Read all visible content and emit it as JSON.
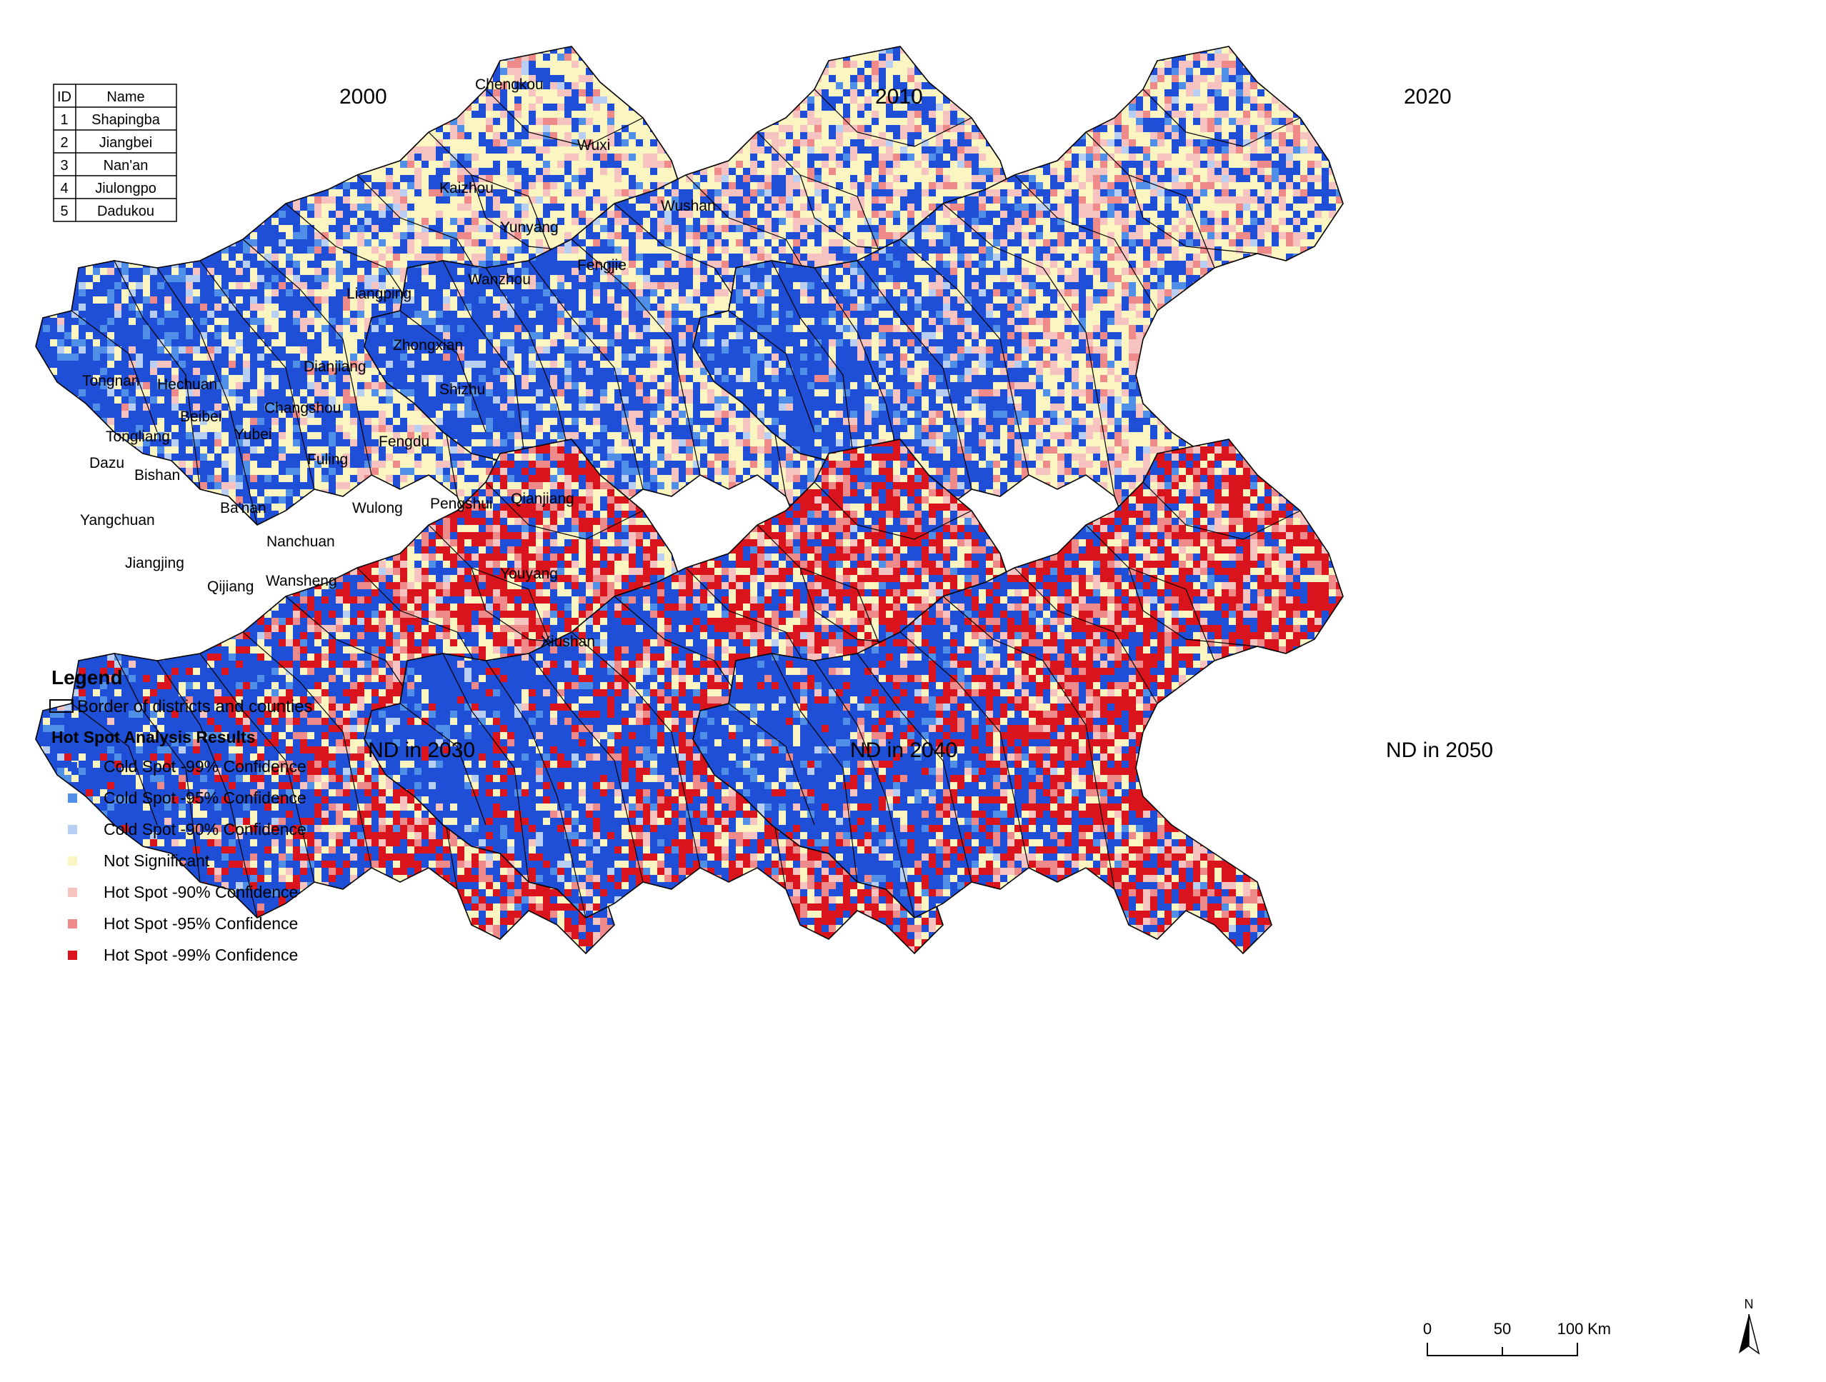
{
  "colors": {
    "cold99": "#1f4fd6",
    "cold95": "#4f8fe8",
    "cold90": "#b8cef3",
    "not_sig": "#fbf5c2",
    "hot90": "#f6c3c0",
    "hot95": "#ee8a8a",
    "hot99": "#d9141c",
    "border": "#000000"
  },
  "panels": [
    {
      "title": "2000",
      "mix": [
        0.52,
        0.1,
        0.06,
        0.25,
        0.05,
        0.02,
        0.0
      ]
    },
    {
      "title": "2010",
      "mix": [
        0.55,
        0.1,
        0.05,
        0.22,
        0.06,
        0.02,
        0.0
      ]
    },
    {
      "title": "2020",
      "mix": [
        0.56,
        0.1,
        0.05,
        0.2,
        0.06,
        0.03,
        0.0
      ]
    },
    {
      "title": "ND in 2030",
      "mix": [
        0.6,
        0.06,
        0.02,
        0.12,
        0.03,
        0.04,
        0.13
      ]
    },
    {
      "title": "ND in 2040",
      "mix": [
        0.6,
        0.06,
        0.02,
        0.11,
        0.03,
        0.04,
        0.14
      ]
    },
    {
      "title": "ND in 2050",
      "mix": [
        0.6,
        0.06,
        0.02,
        0.1,
        0.03,
        0.04,
        0.15
      ]
    }
  ],
  "id_table": {
    "headers": [
      "ID",
      "Name"
    ],
    "rows": [
      [
        "1",
        "Shapingba"
      ],
      [
        "2",
        "Jiangbei"
      ],
      [
        "3",
        "Nan'an"
      ],
      [
        "4",
        "Jiulongpo"
      ],
      [
        "5",
        "Dadukou"
      ]
    ]
  },
  "district_labels": [
    "Chengkou",
    "Wuxi",
    "Kaizhou",
    "Wushan",
    "Yunyang",
    "Fengjie",
    "Wanzhou",
    "Liangping",
    "Zhongxian",
    "Dianjiang",
    "Shizhu",
    "Tongnan",
    "Hechuan",
    "Beibei",
    "Changshou",
    "Yubei",
    "Tongliang",
    "Fengdu",
    "Dazu",
    "Bishan",
    "Fuling",
    "Qianjiang",
    "Ba'nan",
    "Yangchuan",
    "Wulong",
    "Pengshui",
    "Nanchuan",
    "Jiangjing",
    "Wansheng",
    "Qijiang",
    "Youyang",
    "Xiushan"
  ],
  "legend": {
    "title": "Legend",
    "border_label": "Border of districts and counties",
    "subtitle": "Hot Spot Analysis Results",
    "items": [
      {
        "label": "Cold Spot -99% Confidence",
        "color": "#1f4fd6"
      },
      {
        "label": "Cold Spot -95% Confidence",
        "color": "#4f8fe8"
      },
      {
        "label": "Cold Spot -90% Confidence",
        "color": "#b8cef3"
      },
      {
        "label": "Not Significant",
        "color": "#fbf5c2"
      },
      {
        "label": "Hot Spot -90% Confidence",
        "color": "#f6c3c0"
      },
      {
        "label": "Hot Spot -95% Confidence",
        "color": "#ee8a8a"
      },
      {
        "label": "Hot Spot -99% Confidence",
        "color": "#d9141c"
      }
    ]
  },
  "scale_bar": {
    "ticks": [
      "0",
      "50",
      "100"
    ],
    "unit": "Km"
  },
  "north_arrow": {
    "label": "N"
  }
}
